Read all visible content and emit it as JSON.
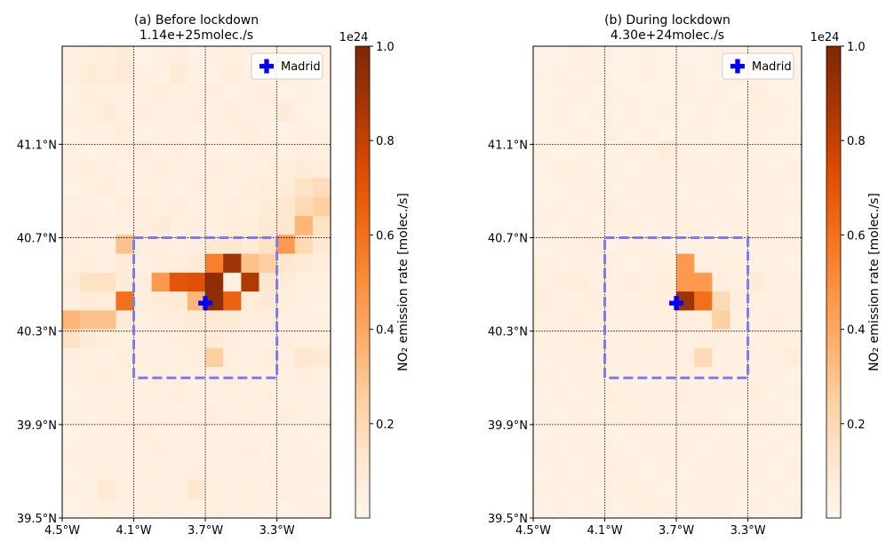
{
  "chart_data": [
    {
      "type": "heatmap",
      "title": "(a) Before lockdown",
      "subtitle": "1.14e+25molec./s",
      "xlim": [
        -4.5,
        -3.0
      ],
      "ylim": [
        39.5,
        41.52
      ],
      "xticks": [
        {
          "value": -4.5,
          "label": "4.5°W"
        },
        {
          "value": -4.1,
          "label": "4.1°W"
        },
        {
          "value": -3.7,
          "label": "3.7°W"
        },
        {
          "value": -3.3,
          "label": "3.3°W"
        }
      ],
      "yticks": [
        {
          "value": 39.5,
          "label": "39.5°N"
        },
        {
          "value": 39.9,
          "label": "39.9°N"
        },
        {
          "value": 40.3,
          "label": "40.3°N"
        },
        {
          "value": 40.7,
          "label": "40.7°N"
        },
        {
          "value": 41.1,
          "label": "41.1°N"
        }
      ],
      "grid": true,
      "values": [
        [
          0.04,
          0.05,
          0.06,
          0.08,
          0.03,
          0.04,
          0.06,
          0.03,
          0.04,
          0.05,
          0.03,
          0.02,
          0.03,
          0.04,
          0.03
        ],
        [
          0.05,
          0.08,
          0.07,
          0.1,
          0.04,
          0.03,
          0.08,
          0.04,
          0.03,
          0.06,
          0.04,
          0.03,
          0.05,
          0.03,
          0.02
        ],
        [
          0.03,
          0.06,
          0.05,
          0.04,
          0.05,
          0.07,
          0.04,
          0.05,
          0.06,
          0.03,
          0.05,
          0.06,
          0.03,
          0.04,
          0.03
        ],
        [
          0.04,
          0.05,
          0.08,
          0.04,
          0.06,
          0.03,
          0.05,
          0.06,
          0.03,
          0.07,
          0.04,
          0.05,
          0.08,
          0.03,
          0.02
        ],
        [
          0.03,
          0.04,
          0.05,
          0.06,
          0.03,
          0.05,
          0.04,
          0.03,
          0.05,
          0.04,
          0.06,
          0.04,
          0.03,
          0.05,
          0.04
        ],
        [
          0.05,
          0.03,
          0.04,
          0.05,
          0.07,
          0.04,
          0.06,
          0.05,
          0.04,
          0.03,
          0.05,
          0.06,
          0.04,
          0.06,
          0.05
        ],
        [
          0.04,
          0.06,
          0.05,
          0.03,
          0.04,
          0.06,
          0.05,
          0.04,
          0.06,
          0.05,
          0.04,
          0.05,
          0.07,
          0.08,
          0.06
        ],
        [
          0.03,
          0.05,
          0.06,
          0.04,
          0.05,
          0.04,
          0.03,
          0.06,
          0.05,
          0.04,
          0.06,
          0.07,
          0.08,
          0.15,
          0.18
        ],
        [
          0.05,
          0.04,
          0.03,
          0.06,
          0.07,
          0.05,
          0.06,
          0.04,
          0.05,
          0.06,
          0.05,
          0.08,
          0.12,
          0.2,
          0.25
        ],
        [
          0.04,
          0.06,
          0.05,
          0.04,
          0.06,
          0.08,
          0.05,
          0.06,
          0.04,
          0.07,
          0.06,
          0.1,
          0.12,
          0.35,
          0.15
        ],
        [
          0.06,
          0.05,
          0.04,
          0.3,
          0.06,
          0.07,
          0.05,
          0.06,
          0.1,
          0.12,
          0.08,
          0.15,
          0.45,
          0.2,
          0.1
        ],
        [
          0.05,
          0.06,
          0.04,
          0.08,
          0.05,
          0.06,
          0.07,
          0.08,
          0.55,
          0.9,
          0.3,
          0.25,
          0.12,
          0.08,
          0.06
        ],
        [
          0.08,
          0.15,
          0.15,
          0.08,
          0.06,
          0.45,
          0.7,
          0.72,
          0.95,
          0.05,
          0.85,
          0.12,
          0.08,
          0.05,
          0.04
        ],
        [
          0.06,
          0.08,
          0.07,
          0.6,
          0.06,
          0.08,
          0.1,
          0.35,
          0.95,
          0.65,
          0.08,
          0.1,
          0.06,
          0.05,
          0.03
        ],
        [
          0.35,
          0.3,
          0.3,
          0.08,
          0.05,
          0.06,
          0.07,
          0.08,
          0.1,
          0.08,
          0.06,
          0.07,
          0.05,
          0.04,
          0.05
        ],
        [
          0.15,
          0.08,
          0.06,
          0.05,
          0.04,
          0.05,
          0.06,
          0.07,
          0.08,
          0.06,
          0.05,
          0.04,
          0.06,
          0.05,
          0.04
        ],
        [
          0.06,
          0.05,
          0.04,
          0.06,
          0.05,
          0.04,
          0.05,
          0.06,
          0.25,
          0.05,
          0.04,
          0.06,
          0.05,
          0.12,
          0.1
        ],
        [
          0.04,
          0.05,
          0.06,
          0.05,
          0.04,
          0.06,
          0.05,
          0.04,
          0.05,
          0.06,
          0.05,
          0.04,
          0.05,
          0.06,
          0.04
        ],
        [
          0.03,
          0.04,
          0.05,
          0.04,
          0.05,
          0.04,
          0.06,
          0.05,
          0.04,
          0.05,
          0.04,
          0.05,
          0.04,
          0.05,
          0.03
        ],
        [
          0.04,
          0.03,
          0.04,
          0.05,
          0.04,
          0.05,
          0.04,
          0.05,
          0.06,
          0.04,
          0.05,
          0.04,
          0.06,
          0.04,
          0.04
        ],
        [
          0.03,
          0.04,
          0.05,
          0.04,
          0.06,
          0.05,
          0.04,
          0.05,
          0.04,
          0.05,
          0.04,
          0.05,
          0.04,
          0.03,
          0.04
        ],
        [
          0.04,
          0.05,
          0.04,
          0.05,
          0.04,
          0.06,
          0.05,
          0.04,
          0.05,
          0.04,
          0.06,
          0.04,
          0.05,
          0.04,
          0.03
        ],
        [
          0.03,
          0.04,
          0.05,
          0.04,
          0.05,
          0.04,
          0.05,
          0.06,
          0.04,
          0.05,
          0.04,
          0.05,
          0.04,
          0.05,
          0.04
        ],
        [
          0.04,
          0.03,
          0.1,
          0.05,
          0.04,
          0.05,
          0.04,
          0.12,
          0.05,
          0.04,
          0.05,
          0.04,
          0.05,
          0.04,
          0.03
        ],
        [
          0.03,
          0.04,
          0.05,
          0.04,
          0.05,
          0.04,
          0.05,
          0.04,
          0.05,
          0.04,
          0.05,
          0.04,
          0.03,
          0.04,
          0.04
        ]
      ],
      "colors": [
        "#fff5eb",
        "#fee6ce",
        "#fdd0a2",
        "#fdae6b",
        "#fd8d3c",
        "#f16913",
        "#d94801",
        "#a63603",
        "#7f2704"
      ],
      "clim": [
        0.0,
        1.0
      ],
      "cticks": [
        0.2,
        0.4,
        0.6,
        0.8,
        {
          "value": 1.0,
          "label": "1.0"
        }
      ],
      "colorbar_offset": "1e24",
      "colorbar_label": "NO₂ emission rate [molec./s]",
      "region": {
        "lon": [
          -4.1,
          -3.3
        ],
        "lat": [
          40.1,
          40.7
        ],
        "color": "#7b7bef"
      },
      "marker": {
        "name": "Madrid",
        "lon": -3.7,
        "lat": 40.42,
        "color": "#0000ff"
      },
      "legend": "upper right"
    },
    {
      "type": "heatmap",
      "title": "(b) During lockdown",
      "subtitle": "4.30e+24molec./s",
      "xlim": [
        -4.5,
        -3.0
      ],
      "ylim": [
        39.5,
        41.52
      ],
      "xticks": [
        {
          "value": -4.5,
          "label": "4.5°W"
        },
        {
          "value": -4.1,
          "label": "4.1°W"
        },
        {
          "value": -3.7,
          "label": "3.7°W"
        },
        {
          "value": -3.3,
          "label": "3.3°W"
        }
      ],
      "yticks": [
        {
          "value": 39.5,
          "label": "39.5°N"
        },
        {
          "value": 39.9,
          "label": "39.9°N"
        },
        {
          "value": 40.3,
          "label": "40.3°N"
        },
        {
          "value": 40.7,
          "label": "40.7°N"
        },
        {
          "value": 41.1,
          "label": "41.1°N"
        }
      ],
      "grid": true,
      "values": [
        [
          0.02,
          0.03,
          0.05,
          0.04,
          0.03,
          0.02,
          0.04,
          0.03,
          0.02,
          0.03,
          0.04,
          0.03,
          0.02,
          0.03,
          0.02
        ],
        [
          0.03,
          0.04,
          0.03,
          0.05,
          0.02,
          0.03,
          0.04,
          0.03,
          0.04,
          0.02,
          0.03,
          0.05,
          0.04,
          0.02,
          0.03
        ],
        [
          0.02,
          0.03,
          0.04,
          0.03,
          0.04,
          0.03,
          0.02,
          0.03,
          0.05,
          0.03,
          0.04,
          0.02,
          0.06,
          0.03,
          0.02
        ],
        [
          0.03,
          0.05,
          0.02,
          0.04,
          0.03,
          0.04,
          0.03,
          0.04,
          0.02,
          0.04,
          0.03,
          0.04,
          0.05,
          0.04,
          0.03
        ],
        [
          0.02,
          0.03,
          0.04,
          0.02,
          0.05,
          0.03,
          0.04,
          0.02,
          0.03,
          0.05,
          0.02,
          0.03,
          0.04,
          0.03,
          0.02
        ],
        [
          0.04,
          0.02,
          0.03,
          0.04,
          0.03,
          0.05,
          0.03,
          0.08,
          0.04,
          0.03,
          0.04,
          0.05,
          0.03,
          0.04,
          0.03
        ],
        [
          0.03,
          0.04,
          0.05,
          0.03,
          0.04,
          0.03,
          0.04,
          0.03,
          0.05,
          0.04,
          0.03,
          0.04,
          0.05,
          0.03,
          0.04
        ],
        [
          0.02,
          0.03,
          0.04,
          0.05,
          0.03,
          0.04,
          0.05,
          0.04,
          0.03,
          0.05,
          0.04,
          0.03,
          0.04,
          0.05,
          0.03
        ],
        [
          0.03,
          0.04,
          0.03,
          0.04,
          0.05,
          0.03,
          0.04,
          0.05,
          0.04,
          0.03,
          0.05,
          0.04,
          0.05,
          0.04,
          0.04
        ],
        [
          0.04,
          0.03,
          0.05,
          0.03,
          0.04,
          0.05,
          0.03,
          0.04,
          0.05,
          0.04,
          0.03,
          0.05,
          0.04,
          0.05,
          0.03
        ],
        [
          0.03,
          0.05,
          0.04,
          0.06,
          0.03,
          0.04,
          0.05,
          0.03,
          0.04,
          0.05,
          0.04,
          0.03,
          0.05,
          0.04,
          0.05
        ],
        [
          0.04,
          0.03,
          0.05,
          0.04,
          0.05,
          0.03,
          0.04,
          0.05,
          0.45,
          0.05,
          0.04,
          0.05,
          0.03,
          0.04,
          0.03
        ],
        [
          0.05,
          0.06,
          0.07,
          0.05,
          0.04,
          0.06,
          0.05,
          0.06,
          0.45,
          0.45,
          0.06,
          0.05,
          0.08,
          0.05,
          0.04
        ],
        [
          0.06,
          0.05,
          0.04,
          0.06,
          0.05,
          0.04,
          0.05,
          0.06,
          0.9,
          0.6,
          0.2,
          0.06,
          0.05,
          0.04,
          0.05
        ],
        [
          0.05,
          0.04,
          0.06,
          0.05,
          0.04,
          0.05,
          0.04,
          0.05,
          0.06,
          0.05,
          0.25,
          0.05,
          0.04,
          0.06,
          0.04
        ],
        [
          0.04,
          0.05,
          0.04,
          0.06,
          0.05,
          0.04,
          0.05,
          0.04,
          0.05,
          0.06,
          0.05,
          0.04,
          0.05,
          0.05,
          0.04
        ],
        [
          0.03,
          0.04,
          0.05,
          0.04,
          0.05,
          0.04,
          0.05,
          0.04,
          0.05,
          0.2,
          0.04,
          0.05,
          0.04,
          0.05,
          0.08
        ],
        [
          0.04,
          0.03,
          0.04,
          0.05,
          0.04,
          0.05,
          0.03,
          0.04,
          0.05,
          0.04,
          0.05,
          0.04,
          0.05,
          0.04,
          0.03
        ],
        [
          0.03,
          0.04,
          0.03,
          0.04,
          0.05,
          0.04,
          0.05,
          0.05,
          0.06,
          0.04,
          0.03,
          0.04,
          0.06,
          0.03,
          0.04
        ],
        [
          0.04,
          0.03,
          0.04,
          0.03,
          0.04,
          0.05,
          0.04,
          0.03,
          0.04,
          0.05,
          0.04,
          0.03,
          0.04,
          0.05,
          0.03
        ],
        [
          0.03,
          0.04,
          0.05,
          0.04,
          0.03,
          0.04,
          0.05,
          0.04,
          0.05,
          0.04,
          0.03,
          0.05,
          0.04,
          0.03,
          0.04
        ],
        [
          0.04,
          0.03,
          0.04,
          0.05,
          0.04,
          0.03,
          0.04,
          0.05,
          0.04,
          0.03,
          0.05,
          0.04,
          0.03,
          0.04,
          0.03
        ],
        [
          0.03,
          0.04,
          0.03,
          0.04,
          0.05,
          0.04,
          0.03,
          0.04,
          0.03,
          0.04,
          0.04,
          0.05,
          0.04,
          0.03,
          0.04
        ],
        [
          0.04,
          0.03,
          0.04,
          0.03,
          0.04,
          0.05,
          0.04,
          0.03,
          0.04,
          0.05,
          0.03,
          0.04,
          0.03,
          0.04,
          0.03
        ],
        [
          0.03,
          0.04,
          0.03,
          0.04,
          0.03,
          0.04,
          0.05,
          0.04,
          0.03,
          0.04,
          0.05,
          0.03,
          0.04,
          0.03,
          0.04
        ]
      ],
      "colors": [
        "#fff5eb",
        "#fee6ce",
        "#fdd0a2",
        "#fdae6b",
        "#fd8d3c",
        "#f16913",
        "#d94801",
        "#a63603",
        "#7f2704"
      ],
      "clim": [
        0.0,
        1.0
      ],
      "cticks": [
        0.2,
        0.4,
        0.6,
        0.8,
        {
          "value": 1.0,
          "label": "1.0"
        }
      ],
      "colorbar_offset": "1e24",
      "colorbar_label": "NO₂ emission rate [molec./s]",
      "region": {
        "lon": [
          -4.1,
          -3.3
        ],
        "lat": [
          40.1,
          40.7
        ],
        "color": "#7b7bef"
      },
      "marker": {
        "name": "Madrid",
        "lon": -3.7,
        "lat": 40.42,
        "color": "#0000ff"
      },
      "legend": "upper right"
    }
  ]
}
